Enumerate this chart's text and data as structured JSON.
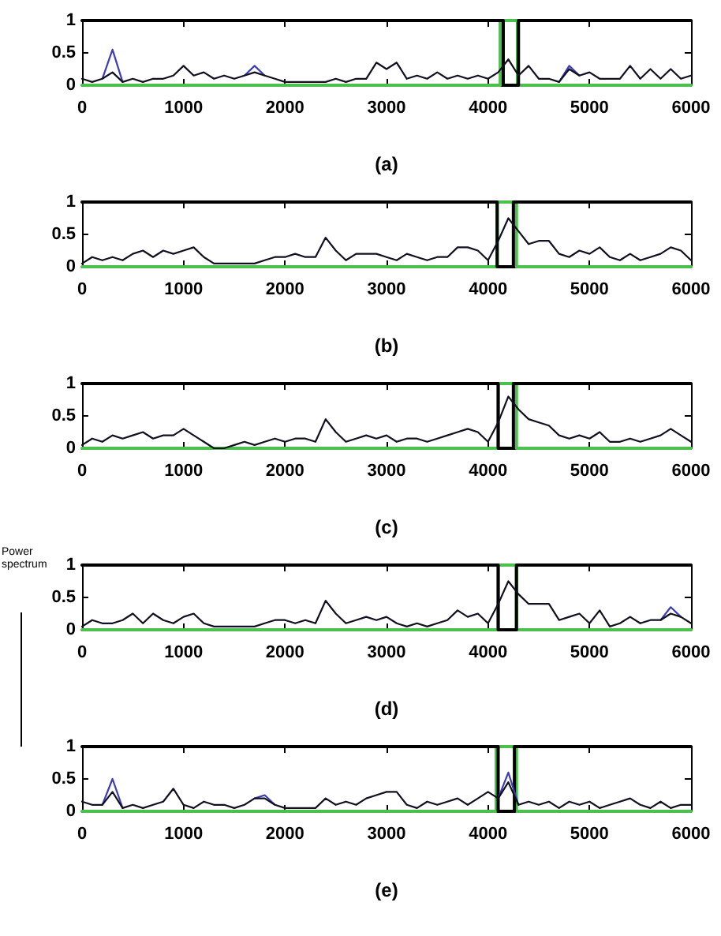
{
  "chart_data": [
    {
      "type": "line",
      "xlabel": "(a)",
      "xlim": [
        0,
        6000
      ],
      "xticks": [
        0,
        1000,
        2000,
        3000,
        4000,
        5000,
        6000
      ],
      "ylim": [
        0,
        1
      ],
      "yticks": [
        0,
        0.5,
        1
      ],
      "x": [
        0,
        100,
        200,
        300,
        400,
        500,
        600,
        700,
        800,
        900,
        1000,
        1100,
        1200,
        1300,
        1400,
        1500,
        1600,
        1700,
        1800,
        1900,
        2000,
        2100,
        2200,
        2300,
        2400,
        2500,
        2600,
        2700,
        2800,
        2900,
        3000,
        3100,
        3200,
        3300,
        3400,
        3500,
        3600,
        3700,
        3800,
        3900,
        4000,
        4100,
        4200,
        4300,
        4400,
        4500,
        4600,
        4700,
        4800,
        4900,
        5000,
        5100,
        5200,
        5300,
        5400,
        5500,
        5600,
        5700,
        5800,
        5900,
        6000
      ],
      "series": [
        {
          "type": "step",
          "color": "#4cc04c",
          "x": [
            0,
            4120,
            4290,
            6000
          ],
          "values": [
            0,
            1,
            0,
            0
          ]
        },
        {
          "type": "step",
          "color": "#000000",
          "x": [
            0,
            4150,
            4300,
            6000
          ],
          "values": [
            1,
            0,
            1,
            1
          ]
        },
        {
          "color": "#3c3cb4",
          "values": [
            null,
            null,
            0.1,
            0.55,
            0.05,
            null,
            null,
            null,
            null,
            null,
            null,
            null,
            null,
            null,
            null,
            null,
            0.15,
            0.3,
            0.15,
            null,
            null,
            null,
            null,
            null,
            null,
            null,
            null,
            null,
            null,
            null,
            null,
            null,
            null,
            null,
            null,
            null,
            null,
            null,
            null,
            null,
            null,
            null,
            null,
            null,
            null,
            null,
            null,
            0.05,
            0.3,
            0.15,
            null,
            null,
            null,
            null,
            null,
            null,
            null,
            null,
            null,
            null,
            null
          ]
        },
        {
          "color": "#101020",
          "values": [
            0.1,
            0.05,
            0.1,
            0.2,
            0.05,
            0.1,
            0.05,
            0.1,
            0.1,
            0.15,
            0.3,
            0.15,
            0.2,
            0.1,
            0.15,
            0.1,
            0.15,
            0.2,
            0.15,
            0.1,
            0.05,
            0.05,
            0.05,
            0.05,
            0.05,
            0.1,
            0.05,
            0.1,
            0.1,
            0.35,
            0.25,
            0.35,
            0.1,
            0.15,
            0.1,
            0.2,
            0.1,
            0.15,
            0.1,
            0.15,
            0.1,
            0.2,
            0.4,
            0.15,
            0.3,
            0.1,
            0.1,
            0.05,
            0.25,
            0.15,
            0.2,
            0.1,
            0.1,
            0.1,
            0.3,
            0.1,
            0.25,
            0.1,
            0.25,
            0.1,
            0.15
          ]
        }
      ]
    },
    {
      "type": "line",
      "xlabel": "(b)",
      "xlim": [
        0,
        6000
      ],
      "xticks": [
        0,
        1000,
        2000,
        3000,
        4000,
        5000,
        6000
      ],
      "ylim": [
        0,
        1
      ],
      "yticks": [
        0,
        0.5,
        1
      ],
      "x": [
        0,
        100,
        200,
        300,
        400,
        500,
        600,
        700,
        800,
        900,
        1000,
        1100,
        1200,
        1300,
        1400,
        1500,
        1600,
        1700,
        1800,
        1900,
        2000,
        2100,
        2200,
        2300,
        2400,
        2500,
        2600,
        2700,
        2800,
        2900,
        3000,
        3100,
        3200,
        3300,
        3400,
        3500,
        3600,
        3700,
        3800,
        3900,
        4000,
        4100,
        4200,
        4300,
        4400,
        4500,
        4600,
        4700,
        4800,
        4900,
        5000,
        5100,
        5200,
        5300,
        5400,
        5500,
        5600,
        5700,
        5800,
        5900,
        6000
      ],
      "series": [
        {
          "type": "step",
          "color": "#4cc04c",
          "x": [
            0,
            4090,
            4280,
            6000
          ],
          "values": [
            0,
            1,
            0,
            0
          ]
        },
        {
          "type": "step",
          "color": "#000000",
          "x": [
            0,
            4090,
            4250,
            6000
          ],
          "values": [
            1,
            0,
            1,
            1
          ]
        },
        {
          "color": "#101020",
          "values": [
            0.05,
            0.15,
            0.1,
            0.15,
            0.1,
            0.2,
            0.25,
            0.15,
            0.25,
            0.2,
            0.25,
            0.3,
            0.15,
            0.05,
            0.05,
            0.05,
            0.05,
            0.05,
            0.1,
            0.15,
            0.15,
            0.2,
            0.15,
            0.15,
            0.45,
            0.25,
            0.1,
            0.2,
            0.2,
            0.2,
            0.15,
            0.1,
            0.2,
            0.15,
            0.1,
            0.15,
            0.15,
            0.3,
            0.3,
            0.25,
            0.1,
            0.4,
            0.75,
            0.55,
            0.35,
            0.4,
            0.4,
            0.2,
            0.15,
            0.25,
            0.2,
            0.3,
            0.15,
            0.1,
            0.2,
            0.1,
            0.15,
            0.2,
            0.3,
            0.25,
            0.1
          ]
        }
      ]
    },
    {
      "type": "line",
      "xlabel": "(c)",
      "xlim": [
        0,
        6000
      ],
      "xticks": [
        0,
        1000,
        2000,
        3000,
        4000,
        5000,
        6000
      ],
      "ylim": [
        0,
        1
      ],
      "yticks": [
        0,
        0.5,
        1
      ],
      "x": [
        0,
        100,
        200,
        300,
        400,
        500,
        600,
        700,
        800,
        900,
        1000,
        1100,
        1200,
        1300,
        1400,
        1500,
        1600,
        1700,
        1800,
        1900,
        2000,
        2100,
        2200,
        2300,
        2400,
        2500,
        2600,
        2700,
        2800,
        2900,
        3000,
        3100,
        3200,
        3300,
        3400,
        3500,
        3600,
        3700,
        3800,
        3900,
        4000,
        4100,
        4200,
        4300,
        4400,
        4500,
        4600,
        4700,
        4800,
        4900,
        5000,
        5100,
        5200,
        5300,
        5400,
        5500,
        5600,
        5700,
        5800,
        5900,
        6000
      ],
      "series": [
        {
          "type": "step",
          "color": "#4cc04c",
          "x": [
            0,
            4100,
            4280,
            6000
          ],
          "values": [
            0,
            1,
            0,
            0
          ]
        },
        {
          "type": "step",
          "color": "#000000",
          "x": [
            0,
            4100,
            4250,
            6000
          ],
          "values": [
            1,
            0,
            1,
            1
          ]
        },
        {
          "color": "#101020",
          "values": [
            0.05,
            0.15,
            0.1,
            0.2,
            0.15,
            0.2,
            0.25,
            0.15,
            0.2,
            0.2,
            0.3,
            0.2,
            0.1,
            0,
            0,
            0.05,
            0.1,
            0.05,
            0.1,
            0.15,
            0.1,
            0.15,
            0.15,
            0.1,
            0.45,
            0.25,
            0.1,
            0.15,
            0.2,
            0.15,
            0.2,
            0.1,
            0.15,
            0.15,
            0.1,
            0.15,
            0.2,
            0.25,
            0.3,
            0.25,
            0.1,
            0.4,
            0.8,
            0.6,
            0.45,
            0.4,
            0.35,
            0.2,
            0.15,
            0.2,
            0.15,
            0.25,
            0.1,
            0.1,
            0.15,
            0.1,
            0.15,
            0.2,
            0.3,
            0.2,
            0.1
          ]
        }
      ]
    },
    {
      "type": "line",
      "xlabel": "(d)",
      "annotations": [
        "Power spectrum"
      ],
      "xlim": [
        0,
        6000
      ],
      "xticks": [
        0,
        1000,
        2000,
        3000,
        4000,
        5000,
        6000
      ],
      "ylim": [
        0,
        1
      ],
      "yticks": [
        0,
        0.5,
        1
      ],
      "x": [
        0,
        100,
        200,
        300,
        400,
        500,
        600,
        700,
        800,
        900,
        1000,
        1100,
        1200,
        1300,
        1400,
        1500,
        1600,
        1700,
        1800,
        1900,
        2000,
        2100,
        2200,
        2300,
        2400,
        2500,
        2600,
        2700,
        2800,
        2900,
        3000,
        3100,
        3200,
        3300,
        3400,
        3500,
        3600,
        3700,
        3800,
        3900,
        4000,
        4100,
        4200,
        4300,
        4400,
        4500,
        4600,
        4700,
        4800,
        4900,
        5000,
        5100,
        5200,
        5300,
        5400,
        5500,
        5600,
        5700,
        5800,
        5900,
        6000
      ],
      "series": [
        {
          "type": "step",
          "color": "#4cc04c",
          "x": [
            0,
            4100,
            4280,
            6000
          ],
          "values": [
            0,
            1,
            0,
            0
          ]
        },
        {
          "type": "step",
          "color": "#000000",
          "x": [
            0,
            4100,
            4280,
            6000
          ],
          "values": [
            1,
            0,
            1,
            1
          ]
        },
        {
          "color": "#3c3cb4",
          "values": [
            null,
            null,
            null,
            null,
            null,
            null,
            null,
            null,
            null,
            null,
            null,
            null,
            null,
            null,
            null,
            null,
            null,
            null,
            null,
            null,
            null,
            null,
            null,
            null,
            null,
            null,
            null,
            null,
            null,
            null,
            null,
            null,
            null,
            null,
            null,
            null,
            null,
            null,
            null,
            null,
            null,
            null,
            null,
            null,
            null,
            null,
            null,
            null,
            null,
            null,
            null,
            null,
            null,
            null,
            null,
            null,
            null,
            0.15,
            0.35,
            0.2,
            null
          ]
        },
        {
          "color": "#101020",
          "values": [
            0.05,
            0.15,
            0.1,
            0.1,
            0.15,
            0.25,
            0.1,
            0.25,
            0.15,
            0.1,
            0.2,
            0.25,
            0.1,
            0.05,
            0.05,
            0.05,
            0.05,
            0.05,
            0.1,
            0.15,
            0.15,
            0.1,
            0.15,
            0.1,
            0.45,
            0.25,
            0.1,
            0.15,
            0.2,
            0.15,
            0.2,
            0.1,
            0.05,
            0.1,
            0.05,
            0.1,
            0.15,
            0.3,
            0.2,
            0.25,
            0.1,
            0.4,
            0.75,
            0.55,
            0.4,
            0.4,
            0.4,
            0.15,
            0.2,
            0.25,
            0.1,
            0.3,
            0.05,
            0.1,
            0.2,
            0.1,
            0.15,
            0.15,
            0.25,
            0.2,
            0.1
          ]
        }
      ]
    },
    {
      "type": "line",
      "xlabel": "(e)",
      "xlim": [
        0,
        6000
      ],
      "xticks": [
        0,
        1000,
        2000,
        3000,
        4000,
        5000,
        6000
      ],
      "ylim": [
        0,
        1
      ],
      "yticks": [
        0,
        0.5,
        1
      ],
      "x": [
        0,
        100,
        200,
        300,
        400,
        500,
        600,
        700,
        800,
        900,
        1000,
        1100,
        1200,
        1300,
        1400,
        1500,
        1600,
        1700,
        1800,
        1900,
        2000,
        2100,
        2200,
        2300,
        2400,
        2500,
        2600,
        2700,
        2800,
        2900,
        3000,
        3100,
        3200,
        3300,
        3400,
        3500,
        3600,
        3700,
        3800,
        3900,
        4000,
        4100,
        4200,
        4300,
        4400,
        4500,
        4600,
        4700,
        4800,
        4900,
        5000,
        5100,
        5200,
        5300,
        5400,
        5500,
        5600,
        5700,
        5800,
        5900,
        6000
      ],
      "series": [
        {
          "type": "step",
          "color": "#4cc04c",
          "x": [
            0,
            4080,
            4280,
            6000
          ],
          "values": [
            0,
            1,
            0,
            0
          ]
        },
        {
          "type": "step",
          "color": "#000000",
          "x": [
            0,
            4100,
            4260,
            6000
          ],
          "values": [
            1,
            0,
            1,
            1
          ]
        },
        {
          "color": "#3c3cb4",
          "values": [
            null,
            null,
            0.1,
            0.5,
            0.05,
            null,
            null,
            null,
            null,
            null,
            null,
            null,
            null,
            null,
            null,
            null,
            null,
            0.2,
            0.25,
            0.1,
            null,
            null,
            null,
            null,
            null,
            null,
            null,
            null,
            null,
            null,
            null,
            null,
            null,
            null,
            null,
            null,
            null,
            null,
            null,
            null,
            null,
            0.2,
            0.6,
            0.1,
            null,
            null,
            null,
            null,
            null,
            null,
            null,
            null,
            null,
            null,
            null,
            null,
            null,
            null,
            null,
            null,
            null
          ]
        },
        {
          "color": "#101020",
          "values": [
            0.15,
            0.1,
            0.1,
            0.3,
            0.05,
            0.1,
            0.05,
            0.1,
            0.15,
            0.35,
            0.1,
            0.05,
            0.15,
            0.1,
            0.1,
            0.05,
            0.1,
            0.2,
            0.2,
            0.1,
            0.05,
            0.05,
            0.05,
            0.05,
            0.2,
            0.1,
            0.15,
            0.1,
            0.2,
            0.25,
            0.3,
            0.3,
            0.1,
            0.05,
            0.15,
            0.1,
            0.15,
            0.2,
            0.1,
            0.2,
            0.3,
            0.2,
            0.45,
            0.1,
            0.15,
            0.1,
            0.15,
            0.05,
            0.15,
            0.1,
            0.15,
            0.05,
            0.1,
            0.15,
            0.2,
            0.1,
            0.05,
            0.15,
            0.05,
            0.1,
            0.1
          ]
        }
      ]
    }
  ]
}
